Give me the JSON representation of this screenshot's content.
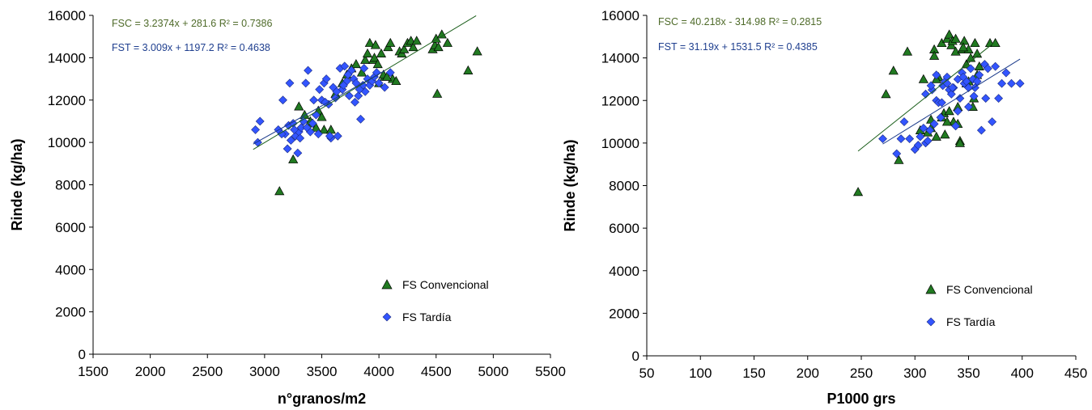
{
  "colors": {
    "fsc": "#217a21",
    "fst": "#3355ff",
    "fsc_eq": "#4f6b2a",
    "fst_eq": "#1f3f8f",
    "trend": "#1a5e1a",
    "axis": "#000000"
  },
  "chart_data": [
    {
      "type": "scatter",
      "xlabel": "n°granos/m2",
      "ylabel": "Rinde (kg/ha)",
      "xlim": [
        1500,
        5500
      ],
      "ylim": [
        0,
        16000
      ],
      "xticks": [
        "1500",
        "2000",
        "2500",
        "3000",
        "3500",
        "4000",
        "4500",
        "5000",
        "5500"
      ],
      "yticks": [
        "0",
        "2000",
        "4000",
        "6000",
        "8000",
        "10000",
        "12000",
        "14000",
        "16000"
      ],
      "legend_position": "lower-right",
      "equations": {
        "fsc": "FSC = 3.2374x + 281.6 R² = 0.7386",
        "fst": "FST = 3.009x + 1197.2 R² = 0.4638"
      },
      "trendlines": [
        {
          "name": "FSC",
          "slope": 3.2374,
          "intercept": 281.6,
          "x_range": [
            2900,
            4850
          ]
        },
        {
          "name": "FST",
          "slope": 3.009,
          "intercept": 1197.2,
          "x_range": [
            2900,
            4050
          ]
        }
      ],
      "series": [
        {
          "name": "FS Convencional",
          "marker": "triangle",
          "x": [
            3130,
            3250,
            3300,
            3350,
            3400,
            3420,
            3450,
            3470,
            3500,
            3520,
            3580,
            3620,
            3680,
            3720,
            3760,
            3800,
            3850,
            3880,
            3900,
            3920,
            3950,
            3970,
            4000,
            4020,
            4050,
            4080,
            4100,
            4120,
            4150,
            4180,
            4200,
            4220,
            4250,
            4280,
            4300,
            4330,
            4470,
            4490,
            4500,
            4510,
            4520,
            4550,
            4600,
            4780,
            4860,
            3960,
            3990,
            4040,
            4070
          ],
          "y": [
            7700,
            9200,
            11700,
            11300,
            11000,
            10900,
            10700,
            11500,
            11200,
            10600,
            10600,
            12300,
            12800,
            13200,
            13500,
            13700,
            13300,
            13900,
            14200,
            14700,
            13900,
            14600,
            12800,
            14200,
            13100,
            14500,
            14700,
            13000,
            12900,
            14300,
            14200,
            14400,
            14700,
            14800,
            14500,
            14800,
            14400,
            14600,
            14900,
            12300,
            14500,
            15100,
            14700,
            13400,
            14300,
            14000,
            13700,
            13200,
            13100
          ]
        },
        {
          "name": "FS Tardía",
          "marker": "diamond",
          "x": [
            2920,
            2940,
            2960,
            3120,
            3160,
            3180,
            3200,
            3210,
            3230,
            3250,
            3270,
            3290,
            3300,
            3320,
            3340,
            3360,
            3380,
            3400,
            3420,
            3450,
            3480,
            3500,
            3520,
            3540,
            3560,
            3580,
            3600,
            3620,
            3640,
            3660,
            3680,
            3700,
            3720,
            3740,
            3760,
            3780,
            3800,
            3820,
            3840,
            3860,
            3880,
            3900,
            3920,
            3940,
            3960,
            3980,
            4000,
            4050,
            4100,
            3150,
            3220,
            3260,
            3310,
            3370,
            3430,
            3470,
            3530,
            3570,
            3630,
            3690,
            3730,
            3790,
            3830,
            3870
          ],
          "y": [
            10600,
            10000,
            11000,
            10600,
            12000,
            10400,
            9700,
            10800,
            10100,
            10900,
            10300,
            9500,
            10500,
            10700,
            11000,
            12800,
            13400,
            10500,
            10900,
            11300,
            12500,
            12000,
            12800,
            13000,
            11800,
            10200,
            12600,
            12100,
            10300,
            13500,
            12500,
            13600,
            12900,
            12200,
            13400,
            13000,
            12800,
            12200,
            11100,
            12700,
            12400,
            13000,
            12700,
            12900,
            13100,
            13300,
            12800,
            12600,
            13300,
            10400,
            12800,
            10600,
            10200,
            10700,
            12000,
            10400,
            11900,
            10300,
            12400,
            12700,
            13200,
            11900,
            12500,
            13500
          ]
        }
      ]
    },
    {
      "type": "scatter",
      "xlabel": "P1000 grs",
      "ylabel": "Rinde (kg/ha)",
      "xlim": [
        50,
        450
      ],
      "ylim": [
        0,
        16000
      ],
      "xticks": [
        "50",
        "100",
        "150",
        "200",
        "250",
        "300",
        "350",
        "400",
        "450"
      ],
      "yticks": [
        "0",
        "2000",
        "4000",
        "6000",
        "8000",
        "10000",
        "12000",
        "14000",
        "16000"
      ],
      "legend_position": "lower-right",
      "equations": {
        "fsc": "FSC = 40.218x - 314.98 R² = 0.2815",
        "fst": "FST = 31.19x + 1531.5 R² = 0.4385"
      },
      "trendlines": [
        {
          "name": "FSC",
          "slope": 40.218,
          "intercept": -314.98,
          "x_range": [
            247,
            373
          ]
        },
        {
          "name": "FST",
          "slope": 31.19,
          "intercept": 1531.5,
          "x_range": [
            270,
            398
          ]
        }
      ],
      "series": [
        {
          "name": "FS Convencional",
          "marker": "triangle",
          "x": [
            247,
            273,
            280,
            285,
            293,
            305,
            308,
            312,
            315,
            318,
            320,
            322,
            325,
            327,
            330,
            332,
            334,
            336,
            338,
            340,
            342,
            344,
            346,
            348,
            350,
            352,
            354,
            356,
            358,
            360,
            370,
            375,
            315,
            320,
            325,
            330,
            335,
            340,
            345,
            350,
            355,
            318,
            328,
            338,
            348,
            358,
            342,
            332
          ],
          "y": [
            7700,
            12300,
            13400,
            9200,
            14300,
            10600,
            13000,
            10500,
            11100,
            14400,
            10300,
            13100,
            14700,
            11400,
            14900,
            15100,
            14600,
            11000,
            14300,
            11700,
            10100,
            14400,
            14800,
            13700,
            14400,
            14000,
            11700,
            14700,
            14200,
            13600,
            14700,
            14700,
            10700,
            13000,
            11200,
            11000,
            14800,
            10900,
            14500,
            12900,
            12100,
            14100,
            10400,
            14900,
            12800,
            13200,
            10000,
            11500
          ]
        },
        {
          "name": "FS Tardía",
          "marker": "diamond",
          "x": [
            270,
            283,
            287,
            290,
            295,
            300,
            303,
            305,
            308,
            310,
            312,
            314,
            316,
            318,
            320,
            322,
            324,
            326,
            328,
            330,
            332,
            334,
            336,
            338,
            340,
            342,
            344,
            346,
            348,
            350,
            352,
            354,
            356,
            358,
            360,
            362,
            365,
            368,
            372,
            375,
            378,
            381,
            385,
            390,
            398,
            315,
            325,
            335,
            345,
            355,
            320,
            340,
            330,
            310,
            350,
            366
          ],
          "y": [
            10200,
            9500,
            10200,
            11000,
            10200,
            9700,
            9900,
            10300,
            10700,
            10000,
            10100,
            10600,
            12500,
            10900,
            12000,
            11900,
            11200,
            12700,
            12900,
            13100,
            12500,
            12300,
            12600,
            10800,
            13000,
            12100,
            13300,
            12800,
            12900,
            11700,
            13500,
            13000,
            12600,
            12900,
            13200,
            10600,
            13700,
            13500,
            11000,
            13600,
            12100,
            12800,
            13300,
            12800,
            12800,
            12700,
            11900,
            12600,
            13100,
            12200,
            13200,
            11500,
            12800,
            12300,
            12600,
            12100
          ]
        }
      ]
    }
  ]
}
